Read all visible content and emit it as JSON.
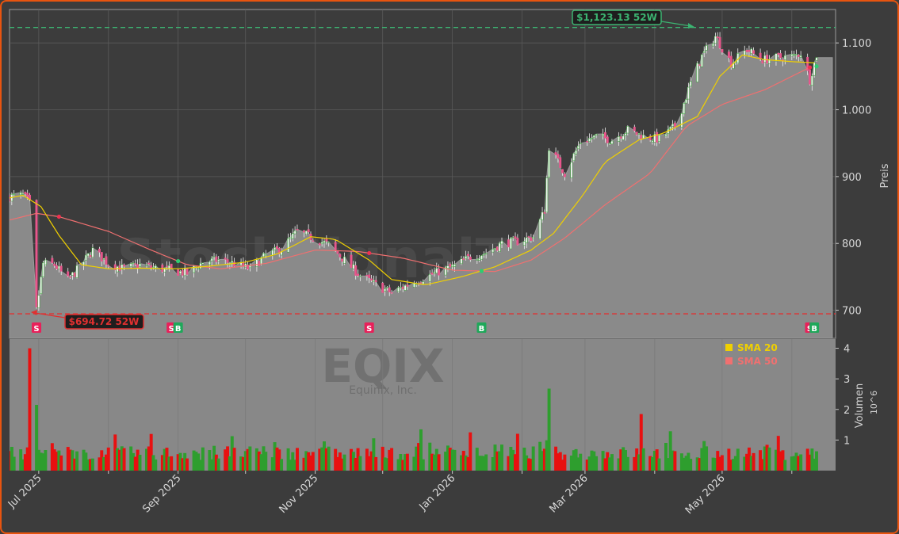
{
  "watermark": {
    "center": "StockSignalTrade",
    "ticker": "EQIX",
    "company": "Equinix, Inc."
  },
  "colors": {
    "frame": "#e8540f",
    "background": "#3c3c3c",
    "plot_bg": "#888888",
    "up": "#2e9e2e",
    "down": "#e81010",
    "sma20": "#f0d000",
    "sma50": "#f07070",
    "high_line": "#3cb371",
    "low_line": "#e03030"
  },
  "chart_data": [
    {
      "type": "candlestick",
      "ylabel": "Preis",
      "ylim": [
        658,
        1150
      ],
      "yticks": [
        700,
        800,
        900,
        1000,
        1100
      ],
      "ytick_labels": [
        "700",
        "800",
        "900",
        "1.000",
        "1.100"
      ],
      "grid": true,
      "legend": {
        "position": "top-right",
        "entries": [
          "SMA 20",
          "SMA 50"
        ]
      },
      "annotations": [
        {
          "label": "$1,123.13 52W",
          "y": 1123.13,
          "kind": "52w-high"
        },
        {
          "label": "$694.72 52W",
          "y": 694.72,
          "kind": "52w-low"
        }
      ],
      "signals": [
        {
          "label": "S",
          "x": "2025-06-30"
        },
        {
          "label": "S",
          "x": "2025-08-29"
        },
        {
          "label": "B",
          "x": "2025-09-01"
        },
        {
          "label": "S",
          "x": "2025-11-25"
        },
        {
          "label": "B",
          "x": "2026-01-14"
        },
        {
          "label": "S",
          "x": "2026-06-09"
        },
        {
          "label": "B",
          "x": "2026-06-11"
        }
      ],
      "close_path": {
        "dates": [
          "2025-06-18",
          "2025-06-24",
          "2025-06-27",
          "2025-06-30",
          "2025-07-03",
          "2025-07-08",
          "2025-07-14",
          "2025-07-18",
          "2025-07-25",
          "2025-08-01",
          "2025-08-08",
          "2025-08-15",
          "2025-08-22",
          "2025-08-29",
          "2025-09-05",
          "2025-09-12",
          "2025-09-19",
          "2025-09-26",
          "2025-10-03",
          "2025-10-10",
          "2025-10-17",
          "2025-10-24",
          "2025-10-31",
          "2025-11-07",
          "2025-11-14",
          "2025-11-21",
          "2025-11-28",
          "2025-12-05",
          "2025-12-12",
          "2025-12-19",
          "2025-12-26",
          "2026-01-02",
          "2026-01-09",
          "2026-01-16",
          "2026-01-23",
          "2026-01-30",
          "2026-02-06",
          "2026-02-11",
          "2026-02-13",
          "2026-02-20",
          "2026-02-27",
          "2026-03-06",
          "2026-03-13",
          "2026-03-20",
          "2026-03-27",
          "2026-04-03",
          "2026-04-10",
          "2026-04-14",
          "2026-04-17",
          "2026-04-22",
          "2026-04-28",
          "2026-05-05",
          "2026-05-12",
          "2026-05-19",
          "2026-05-26",
          "2026-06-02",
          "2026-06-05",
          "2026-06-09",
          "2026-06-12"
        ],
        "values": [
          870,
          872,
          860,
          700,
          770,
          768,
          745,
          760,
          790,
          770,
          762,
          768,
          763,
          760,
          755,
          772,
          775,
          770,
          762,
          782,
          792,
          818,
          808,
          798,
          775,
          752,
          738,
          726,
          738,
          748,
          758,
          766,
          780,
          786,
          800,
          803,
          810,
          850,
          945,
          905,
          952,
          960,
          955,
          970,
          960,
          956,
          975,
          1010,
          1040,
          1080,
          1110,
          1070,
          1090,
          1075,
          1078,
          1080,
          1085,
          1045,
          1082
        ]
      },
      "sma20": {
        "dates": [
          "2025-06-18",
          "2025-06-24",
          "2025-07-02",
          "2025-07-10",
          "2025-07-20",
          "2025-08-01",
          "2025-08-15",
          "2025-09-01",
          "2025-09-15",
          "2025-10-01",
          "2025-10-15",
          "2025-10-30",
          "2025-11-10",
          "2025-11-25",
          "2025-12-05",
          "2025-12-20",
          "2026-01-05",
          "2026-01-20",
          "2026-02-05",
          "2026-02-15",
          "2026-02-28",
          "2026-03-10",
          "2026-03-25",
          "2026-04-05",
          "2026-04-20",
          "2026-04-30",
          "2026-05-10",
          "2026-05-20",
          "2026-06-01",
          "2026-06-12"
        ],
        "values": [
          868,
          872,
          855,
          812,
          768,
          762,
          763,
          762,
          766,
          772,
          784,
          810,
          806,
          775,
          746,
          738,
          750,
          765,
          790,
          815,
          872,
          922,
          955,
          965,
          990,
          1050,
          1082,
          1075,
          1072,
          1070
        ]
      },
      "sma50": {
        "dates": [
          "2025-06-18",
          "2025-06-30",
          "2025-07-10",
          "2025-08-01",
          "2025-08-20",
          "2025-09-05",
          "2025-09-20",
          "2025-10-10",
          "2025-11-01",
          "2025-11-20",
          "2025-12-10",
          "2026-01-01",
          "2026-01-20",
          "2026-02-05",
          "2026-02-20",
          "2026-03-10",
          "2026-03-30",
          "2026-04-15",
          "2026-05-01",
          "2026-05-20",
          "2026-06-01",
          "2026-06-10"
        ],
        "values": [
          835,
          845,
          840,
          818,
          790,
          768,
          762,
          770,
          790,
          788,
          778,
          760,
          758,
          775,
          808,
          858,
          905,
          975,
          1008,
          1030,
          1050,
          1065
        ]
      }
    },
    {
      "type": "bar",
      "ylabel": "Volumen",
      "yscale": "10^6",
      "ylim": [
        0,
        4.3
      ],
      "yticks": [
        1,
        2,
        3,
        4
      ],
      "xtick_labels": [
        "Jul 2025",
        "Sep 2025",
        "Nov 2025",
        "Jan 2026",
        "Mar 2026",
        "May 2026"
      ],
      "x_range": [
        "2025-06-16",
        "2026-06-20"
      ],
      "peaks": [
        {
          "x": "2025-06-27",
          "value": 4.0,
          "color": "down"
        },
        {
          "x": "2025-06-30",
          "value": 2.15,
          "color": "up"
        },
        {
          "x": "2026-02-13",
          "value": 2.68,
          "color": "up"
        },
        {
          "x": "2026-03-26",
          "value": 1.85,
          "color": "down"
        },
        {
          "x": "2025-12-18",
          "value": 1.35,
          "color": "up"
        },
        {
          "x": "2026-01-09",
          "value": 1.25,
          "color": "down"
        },
        {
          "x": "2025-08-20",
          "value": 1.2,
          "color": "down"
        }
      ]
    }
  ]
}
